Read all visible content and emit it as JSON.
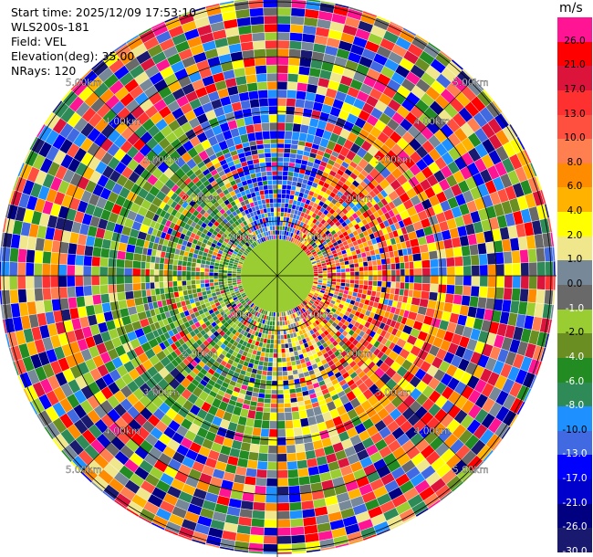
{
  "header": {
    "start_time": "Start time: 2025/12/09 17:53:10",
    "instrument": "WLS200s-181",
    "field": "Field: VEL",
    "elevation": "Elevation(deg): 35.00",
    "nrays": "NRays: 120"
  },
  "colorbar": {
    "unit": "m/s",
    "levels": [
      {
        "label": "26.0",
        "color": "#ff1493"
      },
      {
        "label": "21.0",
        "color": "#ff0000"
      },
      {
        "label": "17.0",
        "color": "#dc143c"
      },
      {
        "label": "13.0",
        "color": "#ff3030"
      },
      {
        "label": "10.0",
        "color": "#ff4f3f"
      },
      {
        "label": "8.0",
        "color": "#ff7f50"
      },
      {
        "label": "6.0",
        "color": "#ff8c00"
      },
      {
        "label": "4.0",
        "color": "#ffb300"
      },
      {
        "label": "2.0",
        "color": "#ffff00"
      },
      {
        "label": "1.0",
        "color": "#f0e68c"
      },
      {
        "label": "0.0",
        "color": "#778899"
      },
      {
        "label": "-1.0",
        "color": "#696969"
      },
      {
        "label": "-2.0",
        "color": "#9acd32"
      },
      {
        "label": "-4.0",
        "color": "#6b8e23"
      },
      {
        "label": "-6.0",
        "color": "#228b22"
      },
      {
        "label": "-8.0",
        "color": "#2e8b57"
      },
      {
        "label": "-10.0",
        "color": "#1e90ff"
      },
      {
        "label": "-13.0",
        "color": "#4169e1"
      },
      {
        "label": "-17.0",
        "color": "#0000ff"
      },
      {
        "label": "-21.0",
        "color": "#0000cd"
      },
      {
        "label": "-26.0",
        "color": "#000080"
      },
      {
        "label": "-30.0",
        "color": "#191970"
      }
    ]
  },
  "range_rings": [
    "1.00km",
    "2.00km",
    "3.00km",
    "4.00km",
    "5.00km"
  ]
}
